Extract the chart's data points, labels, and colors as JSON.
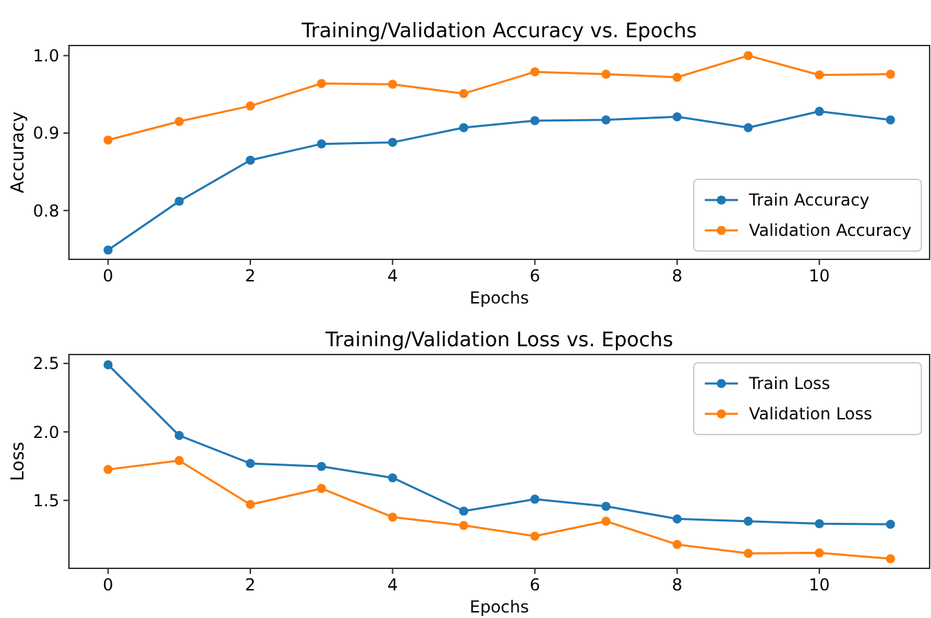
{
  "chart_data": [
    {
      "type": "line",
      "title": "Training/Validation Accuracy vs. Epochs",
      "xlabel": "Epochs",
      "ylabel": "Accuracy",
      "x": [
        0,
        1,
        2,
        3,
        4,
        5,
        6,
        7,
        8,
        9,
        10,
        11
      ],
      "xlim": [
        -0.55,
        11.55
      ],
      "xticks": [
        0,
        2,
        4,
        6,
        8,
        10
      ],
      "ylim": [
        0.737,
        1.013
      ],
      "yticks": [
        {
          "value": 0.8,
          "label": "0.8"
        },
        {
          "value": 0.9,
          "label": "0.9"
        },
        {
          "value": 1.0,
          "label": "1.0"
        }
      ],
      "marker": "circle",
      "legend": "bottom right",
      "grid": false,
      "series": [
        {
          "name": "Train Accuracy",
          "color": "#1f77b4",
          "values": [
            0.749,
            0.812,
            0.865,
            0.886,
            0.888,
            0.907,
            0.916,
            0.917,
            0.921,
            0.907,
            0.928,
            0.917
          ]
        },
        {
          "name": "Validation Accuracy",
          "color": "#ff7f0e",
          "values": [
            0.891,
            0.915,
            0.935,
            0.964,
            0.963,
            0.951,
            0.979,
            0.976,
            0.972,
            1.0,
            0.975,
            0.976
          ]
        }
      ]
    },
    {
      "type": "line",
      "title": "Training/Validation Loss vs. Epochs",
      "xlabel": "Epochs",
      "ylabel": "Loss",
      "x": [
        0,
        1,
        2,
        3,
        4,
        5,
        6,
        7,
        8,
        9,
        10,
        11
      ],
      "xlim": [
        -0.55,
        11.55
      ],
      "xticks": [
        0,
        2,
        4,
        6,
        8,
        10
      ],
      "ylim": [
        1.004,
        2.565
      ],
      "yticks": [
        {
          "value": 1.5,
          "label": "1.5"
        },
        {
          "value": 2.0,
          "label": "2.0"
        },
        {
          "value": 2.5,
          "label": "2.5"
        }
      ],
      "marker": "circle",
      "legend": "top right",
      "grid": false,
      "series": [
        {
          "name": "Train Loss",
          "color": "#1f77b4",
          "values": [
            2.49,
            1.974,
            1.77,
            1.748,
            1.665,
            1.422,
            1.509,
            1.457,
            1.365,
            1.348,
            1.33,
            1.326
          ]
        },
        {
          "name": "Validation Loss",
          "color": "#ff7f0e",
          "values": [
            1.726,
            1.791,
            1.47,
            1.587,
            1.378,
            1.317,
            1.239,
            1.348,
            1.178,
            1.113,
            1.117,
            1.074
          ]
        }
      ]
    }
  ]
}
